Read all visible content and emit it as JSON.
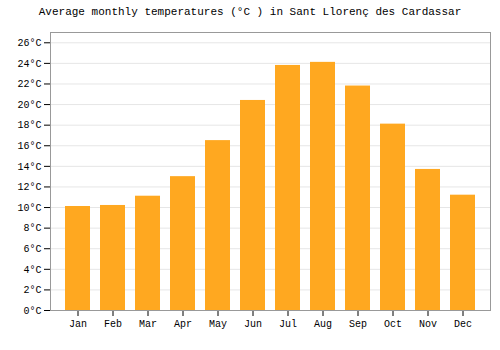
{
  "chart_data": {
    "type": "bar",
    "title": "Average monthly temperatures (°C ) in Sant Llorenç des Cardassar",
    "categories": [
      "Jan",
      "Feb",
      "Mar",
      "Apr",
      "May",
      "Jun",
      "Jul",
      "Aug",
      "Sep",
      "Oct",
      "Nov",
      "Dec"
    ],
    "values": [
      10.1,
      10.2,
      11.1,
      13.0,
      16.5,
      20.4,
      23.8,
      24.1,
      21.8,
      18.1,
      13.7,
      11.2
    ],
    "color": "#FFA820",
    "ylim": [
      0,
      27
    ],
    "yticks": [
      {
        "value": 0,
        "label": "0°C"
      },
      {
        "value": 2,
        "label": "2°C"
      },
      {
        "value": 4,
        "label": "4°C"
      },
      {
        "value": 6,
        "label": "6°C"
      },
      {
        "value": 8,
        "label": "8°C"
      },
      {
        "value": 10,
        "label": "10°C"
      },
      {
        "value": 12,
        "label": "12°C"
      },
      {
        "value": 14,
        "label": "14°C"
      },
      {
        "value": 16,
        "label": "16°C"
      },
      {
        "value": 18,
        "label": "18°C"
      },
      {
        "value": 20,
        "label": "20°C"
      },
      {
        "value": 22,
        "label": "22°C"
      },
      {
        "value": 24,
        "label": "24°C"
      },
      {
        "value": 26,
        "label": "26°C"
      }
    ],
    "grid": true
  }
}
